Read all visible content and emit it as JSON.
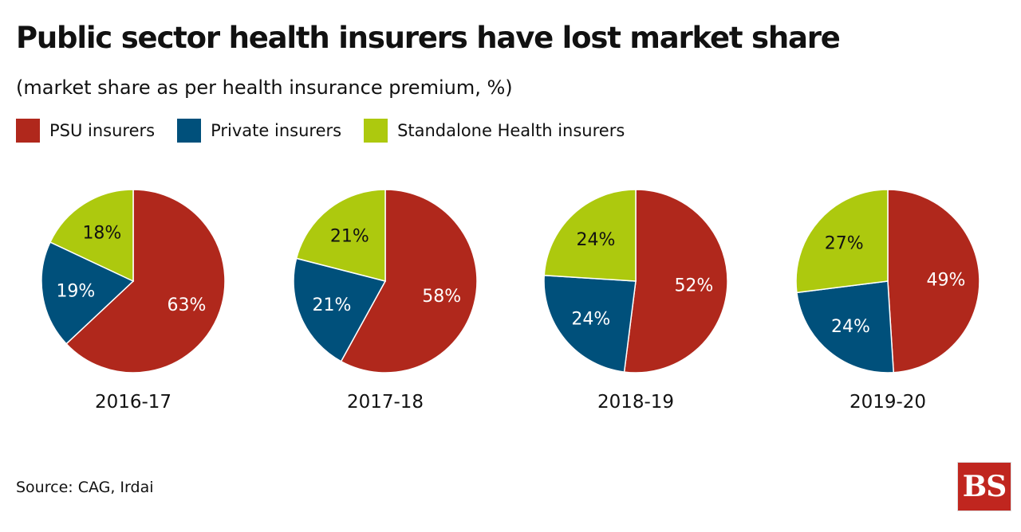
{
  "title": "Public sector health insurers have lost market share",
  "subtitle": "(market share as per health insurance premium, %)",
  "legend": [
    {
      "label": "PSU insurers",
      "color": "#b0281c"
    },
    {
      "label": "Private insurers",
      "color": "#00507b"
    },
    {
      "label": "Standalone Health insurers",
      "color": "#adc90e"
    }
  ],
  "chart_data": {
    "type": "pie",
    "series_names": [
      "PSU insurers",
      "Private insurers",
      "Standalone Health insurers"
    ],
    "charts": [
      {
        "label": "2016-17",
        "values": [
          63,
          19,
          18
        ],
        "value_labels": [
          "63%",
          "19%",
          "18%"
        ]
      },
      {
        "label": "2017-18",
        "values": [
          58,
          21,
          21
        ],
        "value_labels": [
          "58%",
          "21%",
          "21%"
        ]
      },
      {
        "label": "2018-19",
        "values": [
          52,
          24,
          24
        ],
        "value_labels": [
          "52%",
          "24%",
          "24%"
        ]
      },
      {
        "label": "2019-20",
        "values": [
          49,
          24,
          27
        ],
        "value_labels": [
          "49%",
          "24%",
          "27%"
        ]
      }
    ]
  },
  "source": "Source: CAG, Irdai",
  "logo_text": "BS"
}
